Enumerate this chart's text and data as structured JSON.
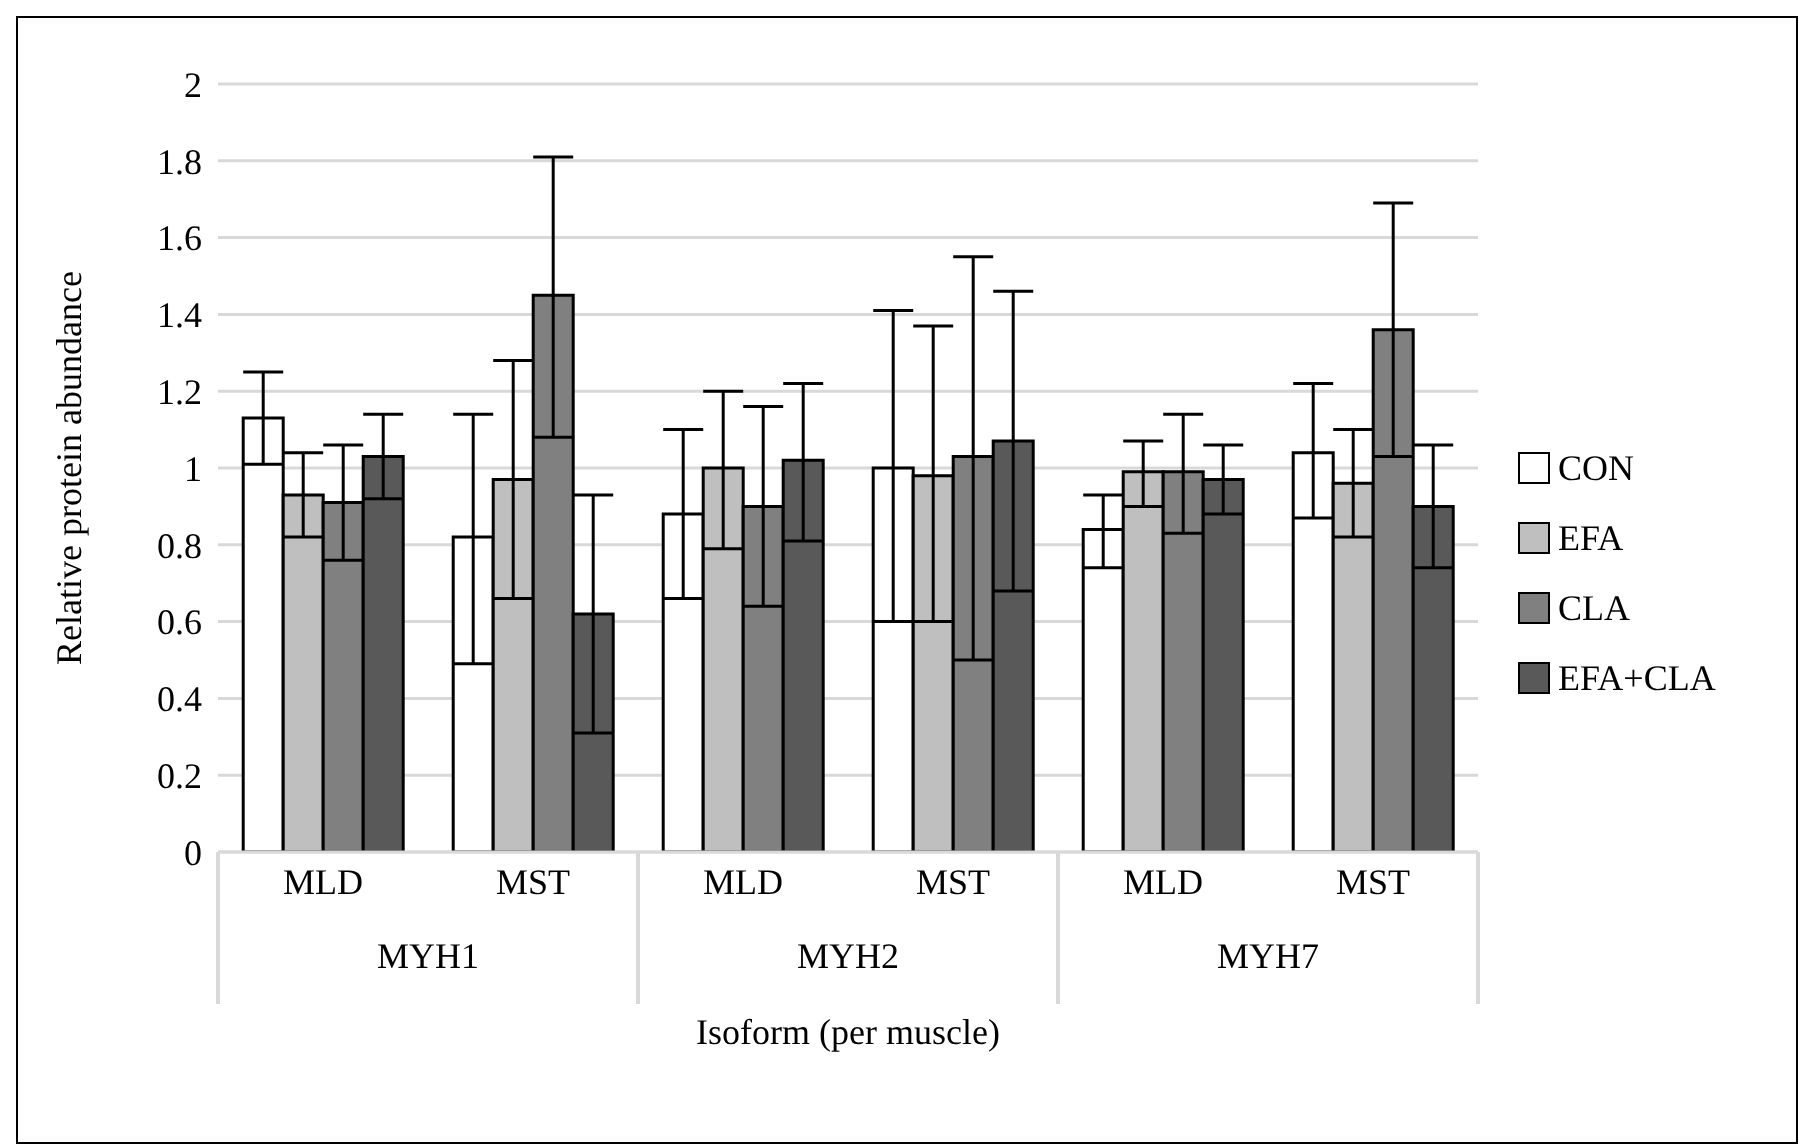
{
  "chart_data": {
    "type": "bar",
    "xlabel": "Isoform (per muscle)",
    "ylabel": "Relative protein abundance",
    "categories": [
      "MLD",
      "MST",
      "MLD",
      "MST",
      "MLD",
      "MST"
    ],
    "annotations": [
      "MYH1",
      "MYH2",
      "MYH7"
    ],
    "series": [
      {
        "name": "CON",
        "color": "#ffffff",
        "values": [
          1.13,
          0.82,
          0.88,
          1.0,
          0.84,
          1.04
        ],
        "errors": [
          [
            1.01,
            1.25
          ],
          [
            0.49,
            1.14
          ],
          [
            0.66,
            1.1
          ],
          [
            0.6,
            1.41
          ],
          [
            0.74,
            0.93
          ],
          [
            0.87,
            1.22
          ]
        ]
      },
      {
        "name": "EFA",
        "color": "#bfbfbf",
        "values": [
          0.93,
          0.97,
          1.0,
          0.98,
          0.99,
          0.96
        ],
        "errors": [
          [
            0.82,
            1.04
          ],
          [
            0.66,
            1.28
          ],
          [
            0.79,
            1.2
          ],
          [
            0.6,
            1.37
          ],
          [
            0.9,
            1.07
          ],
          [
            0.82,
            1.1
          ]
        ]
      },
      {
        "name": "CLA",
        "color": "#808080",
        "values": [
          0.91,
          1.45,
          0.9,
          1.03,
          0.99,
          1.36
        ],
        "errors": [
          [
            0.76,
            1.06
          ],
          [
            1.08,
            1.81
          ],
          [
            0.64,
            1.16
          ],
          [
            0.5,
            1.55
          ],
          [
            0.83,
            1.14
          ],
          [
            1.03,
            1.69
          ]
        ]
      },
      {
        "name": "EFA+CLA",
        "color": "#595959",
        "values": [
          1.03,
          0.62,
          1.02,
          1.07,
          0.97,
          0.9
        ],
        "errors": [
          [
            0.92,
            1.14
          ],
          [
            0.31,
            0.93
          ],
          [
            0.81,
            1.22
          ],
          [
            0.68,
            1.46
          ],
          [
            0.88,
            1.06
          ],
          [
            0.74,
            1.06
          ]
        ]
      }
    ],
    "ylim": [
      0,
      2
    ],
    "yticks": [
      0,
      0.2,
      0.4,
      0.6,
      0.8,
      1,
      1.2,
      1.4,
      1.6,
      1.8,
      2
    ],
    "grid": "y",
    "legend": "right"
  }
}
